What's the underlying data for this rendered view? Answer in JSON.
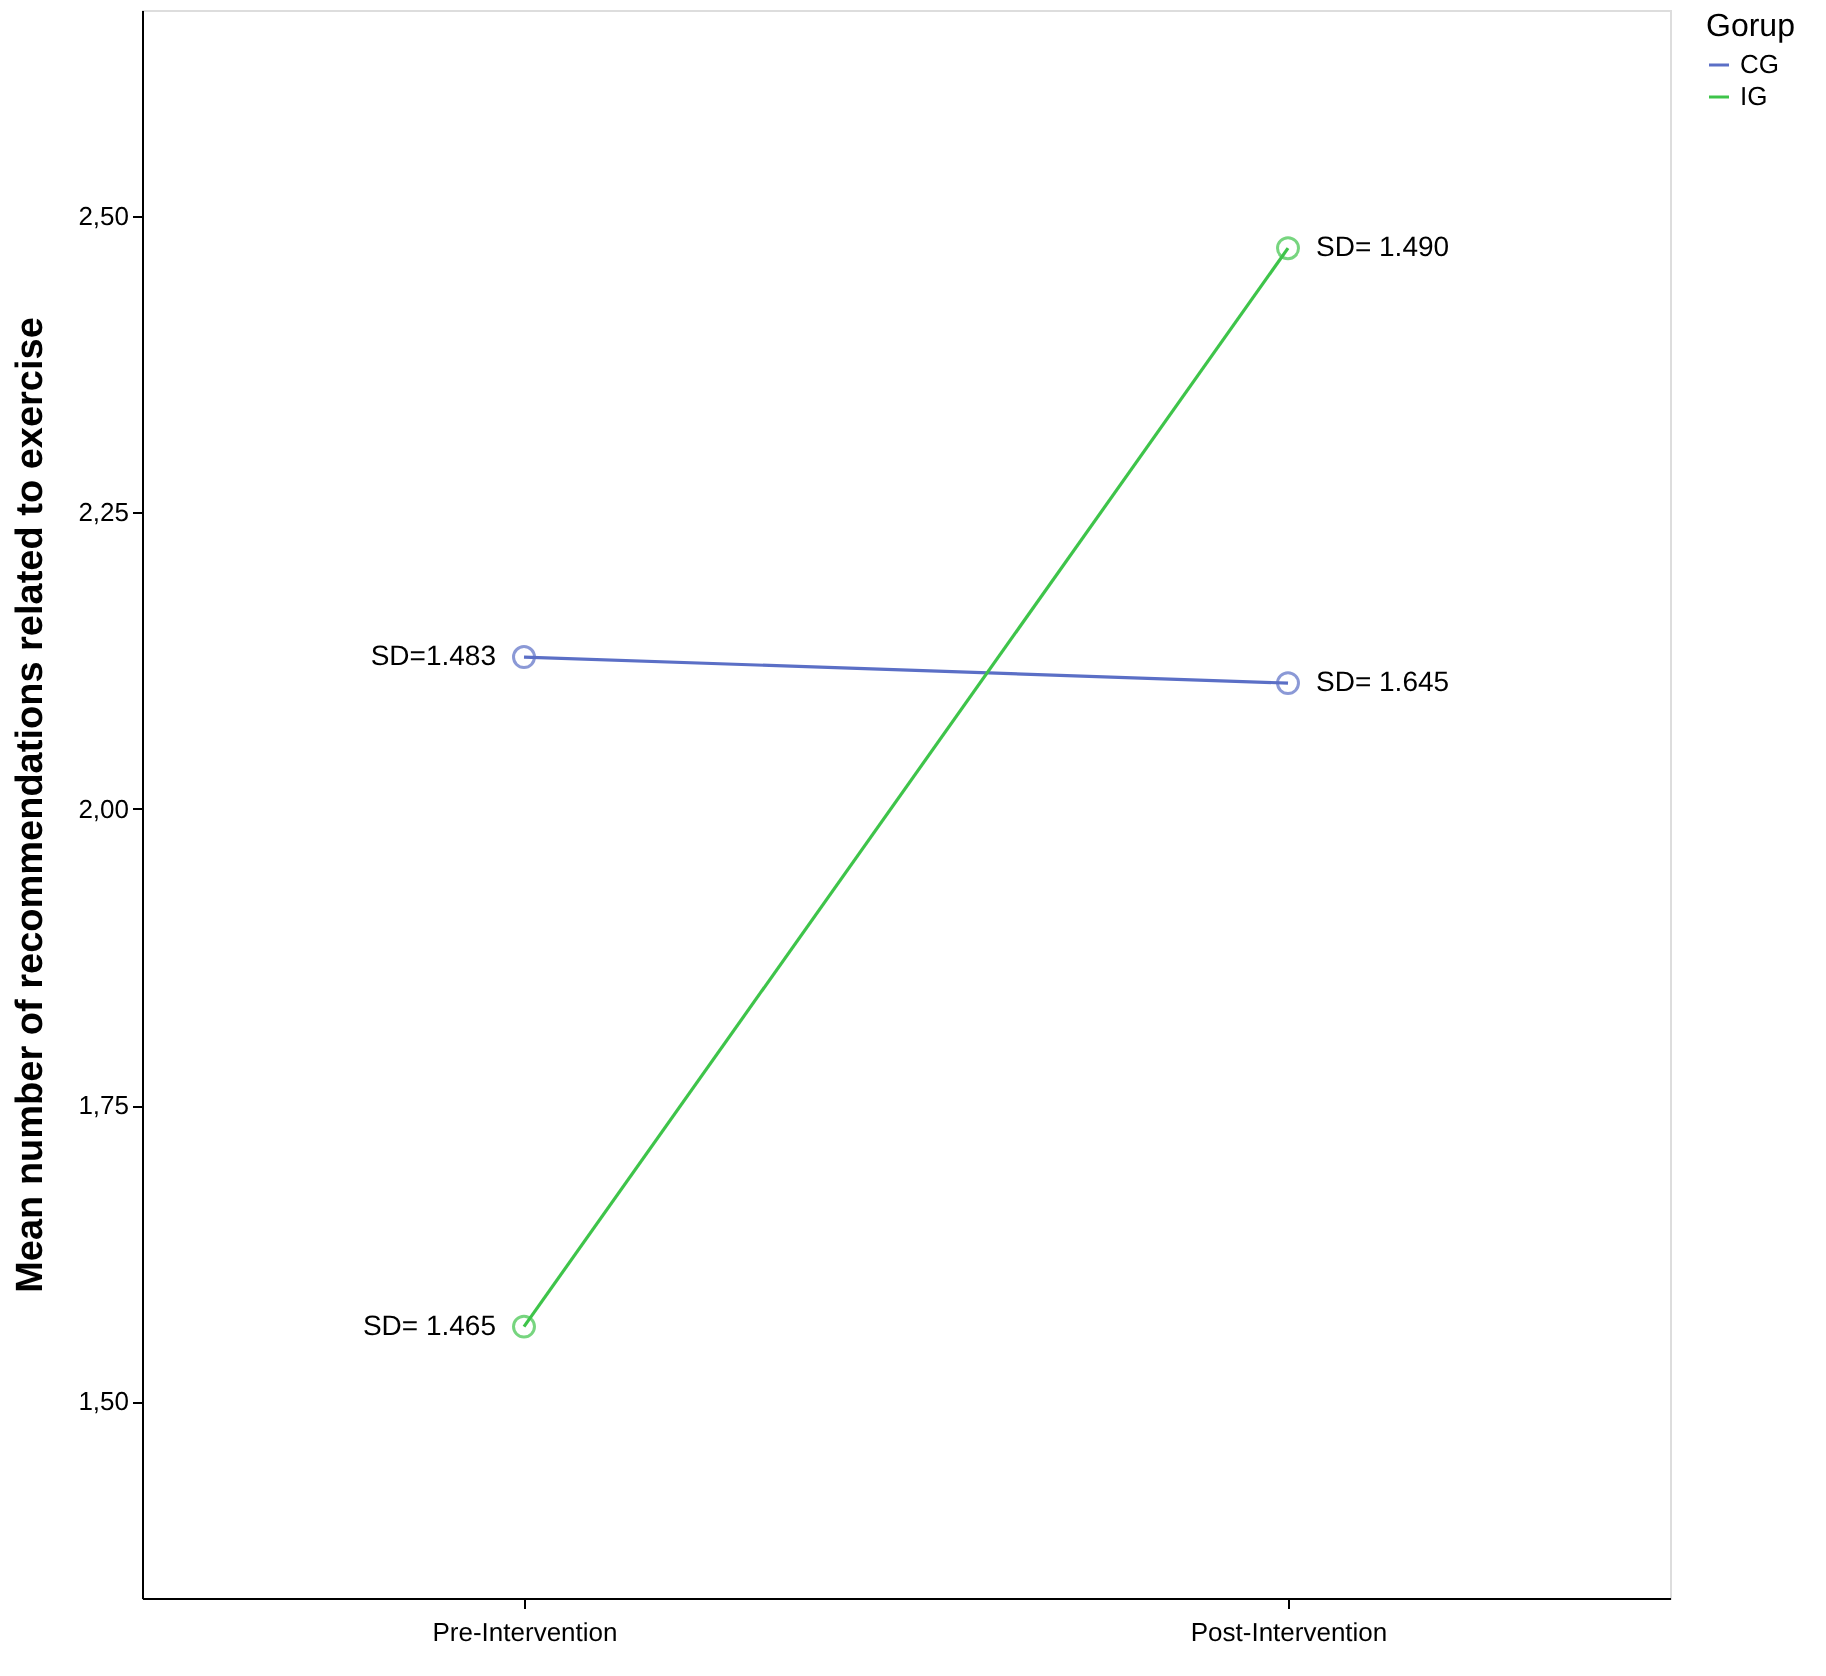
{
  "chart_data": {
    "type": "line",
    "ylabel": "Mean number of recommendations related to exercise",
    "legend_title": "Gorup",
    "categories": [
      "Pre-Intervention",
      "Post-Intervention"
    ],
    "series": [
      {
        "name": "CG",
        "color": "#5b6fc6",
        "values": [
          2.128,
          2.106
        ]
      },
      {
        "name": "IG",
        "color": "#3ec44a",
        "values": [
          1.563,
          2.473
        ]
      }
    ],
    "ylim": [
      1.334,
      2.674
    ],
    "yticks": [
      {
        "value": 1.5,
        "label": "1,50"
      },
      {
        "value": 1.75,
        "label": "1,75"
      },
      {
        "value": 2.0,
        "label": "2,00"
      },
      {
        "value": 2.25,
        "label": "2,25"
      },
      {
        "value": 2.5,
        "label": "2,50"
      }
    ],
    "annotations": [
      {
        "text": "SD=1.483",
        "x": "Pre-Intervention",
        "y": 2.128
      },
      {
        "text": "SD= 1.645",
        "x": "Post-Intervention",
        "y": 2.106
      },
      {
        "text": "SD= 1.465",
        "x": "Pre-Intervention",
        "y": 1.563
      },
      {
        "text": "SD= 1.490",
        "x": "Post-Intervention",
        "y": 2.473
      }
    ],
    "marker": "circle",
    "line_style": "solid",
    "grid": false,
    "legend": "top right"
  }
}
